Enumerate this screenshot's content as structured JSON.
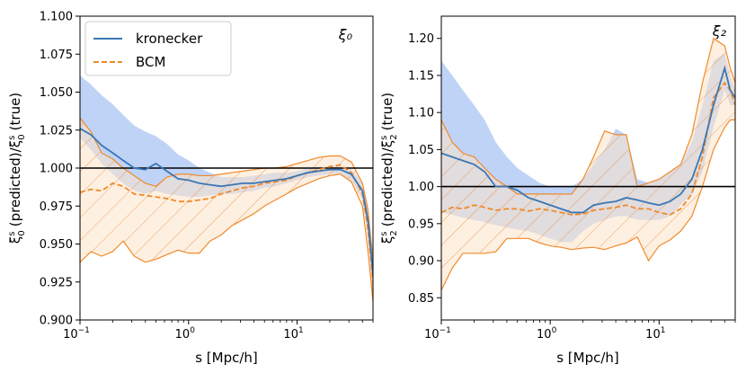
{
  "colors": {
    "kronecker": "#3a77b4",
    "kronecker_band": "#aac4f4",
    "bcm": "#f08a2a",
    "bcm_band": "#fde4c8",
    "bcm_hatch": "#e8904a",
    "reference": "#000000"
  },
  "legend": {
    "items": [
      {
        "label": "kronecker",
        "style": "solid"
      },
      {
        "label": "BCM",
        "style": "dashed"
      }
    ],
    "placement": "top-left of left panel"
  },
  "chart_data": [
    {
      "type": "line",
      "panel_label": "ξ₀",
      "xlabel": "s [Mpc/h]",
      "ylabel_main": "ξ",
      "ylabel_text": "(predicted)/",
      "ylabel_text2": "(true)",
      "x_scale": "log",
      "xlim": [
        0.1,
        50
      ],
      "ylim": [
        0.9,
        1.1
      ],
      "yticks": [
        "0.900",
        "0.925",
        "0.950",
        "0.975",
        "1.000",
        "1.025",
        "1.050",
        "1.075",
        "1.100"
      ],
      "ytick_values": [
        0.9,
        0.925,
        0.95,
        0.975,
        1.0,
        1.025,
        1.05,
        1.075,
        1.1
      ],
      "xticks": [
        {
          "base": "10",
          "exp": "−1",
          "value": 0.1
        },
        {
          "base": "10",
          "exp": "0",
          "value": 1
        },
        {
          "base": "10",
          "exp": "1",
          "value": 10
        }
      ],
      "reference_y": 1.0,
      "x": [
        0.1,
        0.126,
        0.158,
        0.2,
        0.25,
        0.316,
        0.4,
        0.5,
        0.63,
        0.8,
        1.0,
        1.26,
        1.58,
        2.0,
        2.5,
        3.16,
        4.0,
        5.0,
        6.3,
        8.0,
        10.0,
        12.6,
        15.8,
        20.0,
        25.0,
        31.6,
        40.0,
        45.0,
        50.0
      ],
      "series": [
        {
          "name": "kronecker",
          "values": [
            1.026,
            1.022,
            1.015,
            1.01,
            1.005,
            1.0,
            0.999,
            1.003,
            0.998,
            0.993,
            0.992,
            0.99,
            0.989,
            0.988,
            0.989,
            0.99,
            0.99,
            0.991,
            0.992,
            0.993,
            0.995,
            0.997,
            0.998,
            0.999,
            0.999,
            0.996,
            0.985,
            0.965,
            0.93
          ],
          "lower": [
            1.02,
            1.012,
            1.003,
            0.996,
            0.99,
            0.985,
            0.983,
            0.985,
            0.983,
            0.982,
            0.981,
            0.981,
            0.982,
            0.983,
            0.983,
            0.984,
            0.985,
            0.987,
            0.988,
            0.99,
            0.992,
            0.994,
            0.995,
            0.996,
            0.996,
            0.992,
            0.979,
            0.955,
            0.915
          ],
          "upper": [
            1.061,
            1.055,
            1.048,
            1.042,
            1.035,
            1.028,
            1.024,
            1.021,
            1.016,
            1.009,
            1.005,
            1.0,
            0.997,
            0.994,
            0.994,
            0.994,
            0.995,
            0.996,
            0.997,
            0.997,
            0.998,
            1.0,
            1.001,
            1.001,
            1.001,
            0.999,
            0.991,
            0.975,
            0.945
          ]
        },
        {
          "name": "BCM",
          "values": [
            0.984,
            0.986,
            0.985,
            0.99,
            0.988,
            0.983,
            0.982,
            0.981,
            0.98,
            0.978,
            0.978,
            0.979,
            0.98,
            0.983,
            0.985,
            0.987,
            0.988,
            0.99,
            0.991,
            0.992,
            0.995,
            0.997,
            0.999,
            1.001,
            1.002,
            0.997,
            0.983,
            0.96,
            0.925
          ],
          "lower": [
            0.938,
            0.945,
            0.942,
            0.945,
            0.952,
            0.942,
            0.938,
            0.94,
            0.943,
            0.946,
            0.944,
            0.944,
            0.952,
            0.956,
            0.962,
            0.966,
            0.97,
            0.975,
            0.979,
            0.983,
            0.987,
            0.99,
            0.993,
            0.995,
            0.996,
            0.991,
            0.975,
            0.945,
            0.912
          ],
          "upper": [
            1.033,
            1.024,
            1.01,
            1.006,
            1.0,
            0.995,
            0.99,
            0.988,
            0.994,
            0.996,
            0.996,
            0.995,
            0.995,
            0.996,
            0.997,
            0.998,
            0.999,
            1.0,
            1.0,
            1.001,
            1.003,
            1.005,
            1.007,
            1.008,
            1.008,
            1.004,
            0.99,
            0.972,
            0.938
          ]
        }
      ]
    },
    {
      "type": "line",
      "panel_label": "ξ₂",
      "xlabel": "s [Mpc/h]",
      "ylabel_main": "ξ",
      "ylabel_text": "(predicted)/",
      "ylabel_text2": "(true)",
      "x_scale": "log",
      "xlim": [
        0.1,
        50
      ],
      "ylim": [
        0.82,
        1.23
      ],
      "yticks": [
        "0.85",
        "0.90",
        "0.95",
        "1.00",
        "1.05",
        "1.10",
        "1.15",
        "1.20"
      ],
      "ytick_values": [
        0.85,
        0.9,
        0.95,
        1.0,
        1.05,
        1.1,
        1.15,
        1.2
      ],
      "xticks": [
        {
          "base": "10",
          "exp": "−1",
          "value": 0.1
        },
        {
          "base": "10",
          "exp": "0",
          "value": 1
        },
        {
          "base": "10",
          "exp": "1",
          "value": 10
        }
      ],
      "reference_y": 1.0,
      "x": [
        0.1,
        0.126,
        0.158,
        0.2,
        0.25,
        0.316,
        0.4,
        0.5,
        0.63,
        0.8,
        1.0,
        1.26,
        1.58,
        2.0,
        2.5,
        3.16,
        4.0,
        5.0,
        6.3,
        8.0,
        10.0,
        12.6,
        15.8,
        20.0,
        25.0,
        31.6,
        40.0,
        45.0,
        50.0
      ],
      "series": [
        {
          "name": "kronecker",
          "values": [
            1.045,
            1.04,
            1.035,
            1.03,
            1.02,
            1.0,
            1.0,
            0.995,
            0.985,
            0.98,
            0.975,
            0.97,
            0.965,
            0.965,
            0.975,
            0.978,
            0.98,
            0.985,
            0.982,
            0.978,
            0.975,
            0.98,
            0.99,
            1.01,
            1.05,
            1.11,
            1.16,
            1.13,
            1.12
          ],
          "lower": [
            0.965,
            0.962,
            0.958,
            0.955,
            0.952,
            0.948,
            0.945,
            0.942,
            0.94,
            0.935,
            0.93,
            0.925,
            0.925,
            0.94,
            0.95,
            0.955,
            0.96,
            0.96,
            0.955,
            0.955,
            0.955,
            0.96,
            0.975,
            0.99,
            1.02,
            1.08,
            1.13,
            1.11,
            1.11
          ],
          "upper": [
            1.17,
            1.15,
            1.13,
            1.11,
            1.09,
            1.06,
            1.04,
            1.025,
            1.015,
            1.005,
            1.0,
            1.0,
            1.0,
            1.01,
            1.03,
            1.05,
            1.078,
            1.07,
            1.01,
            1.005,
            1.01,
            1.02,
            1.03,
            1.06,
            1.11,
            1.17,
            1.18,
            1.15,
            1.13
          ]
        },
        {
          "name": "BCM",
          "values": [
            0.965,
            0.972,
            0.97,
            0.975,
            0.972,
            0.968,
            0.97,
            0.97,
            0.967,
            0.97,
            0.968,
            0.965,
            0.962,
            0.963,
            0.968,
            0.97,
            0.972,
            0.975,
            0.97,
            0.97,
            0.965,
            0.962,
            0.97,
            0.99,
            1.04,
            1.12,
            1.14,
            1.13,
            1.11
          ],
          "lower": [
            0.86,
            0.89,
            0.91,
            0.91,
            0.91,
            0.912,
            0.93,
            0.93,
            0.93,
            0.924,
            0.92,
            0.918,
            0.915,
            0.917,
            0.918,
            0.915,
            0.92,
            0.924,
            0.932,
            0.9,
            0.92,
            0.928,
            0.94,
            0.96,
            1.0,
            1.05,
            1.08,
            1.09,
            1.09
          ],
          "upper": [
            1.09,
            1.06,
            1.045,
            1.04,
            1.025,
            1.01,
            1.0,
            0.99,
            0.99,
            0.99,
            0.99,
            0.99,
            0.99,
            1.01,
            1.04,
            1.075,
            1.07,
            1.07,
            1.0,
            1.005,
            1.01,
            1.02,
            1.03,
            1.07,
            1.14,
            1.2,
            1.19,
            1.16,
            1.14
          ]
        }
      ]
    }
  ]
}
